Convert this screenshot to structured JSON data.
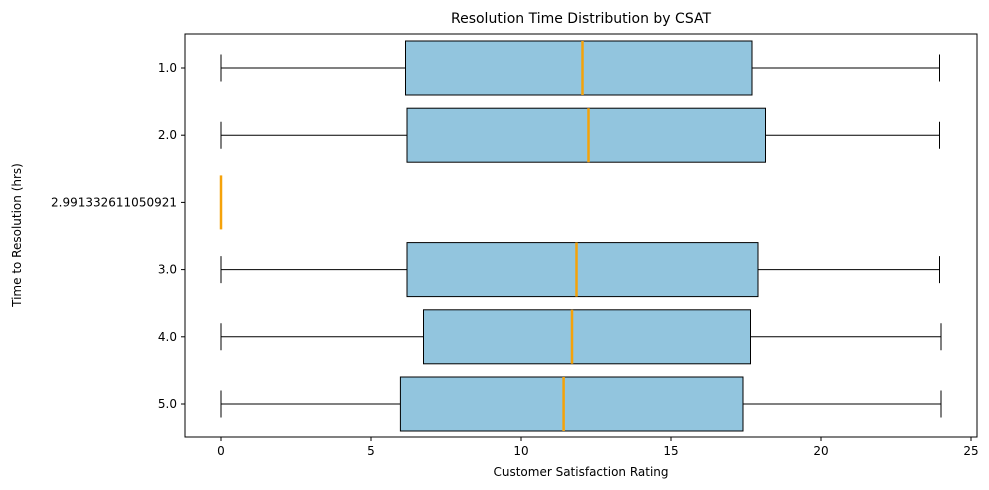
{
  "chart_data": {
    "type": "boxplot",
    "orientation": "horizontal",
    "title": "Resolution Time Distribution by CSAT",
    "xlabel": "Customer Satisfaction Rating",
    "ylabel": "Time to Resolution (hrs)",
    "xlim": [
      -1.2,
      25.2
    ],
    "xticks": [
      0,
      5,
      10,
      15,
      20,
      25
    ],
    "grid": false,
    "colors": {
      "box_fill": "#92c5de",
      "median": "#f5a20a",
      "line": "#000000"
    },
    "categories": [
      "1.0",
      "2.0",
      "2.991332611050921",
      "3.0",
      "4.0",
      "5.0"
    ],
    "boxes": [
      {
        "label": "1.0",
        "whisker_low": 0.0,
        "q1": 6.15,
        "median": 12.05,
        "q3": 17.7,
        "whisker_high": 23.95
      },
      {
        "label": "2.0",
        "whisker_low": 0.0,
        "q1": 6.2,
        "median": 12.25,
        "q3": 18.15,
        "whisker_high": 23.95
      },
      {
        "label": "2.991332611050921",
        "whisker_low": 0.0,
        "q1": 0.0,
        "median": 0.0,
        "q3": 0.0,
        "whisker_high": 0.0
      },
      {
        "label": "3.0",
        "whisker_low": 0.0,
        "q1": 6.2,
        "median": 11.85,
        "q3": 17.9,
        "whisker_high": 23.95
      },
      {
        "label": "4.0",
        "whisker_low": 0.0,
        "q1": 6.75,
        "median": 11.7,
        "q3": 17.65,
        "whisker_high": 24.0
      },
      {
        "label": "5.0",
        "whisker_low": 0.0,
        "q1": 5.98,
        "median": 11.42,
        "q3": 17.4,
        "whisker_high": 24.0
      }
    ]
  }
}
